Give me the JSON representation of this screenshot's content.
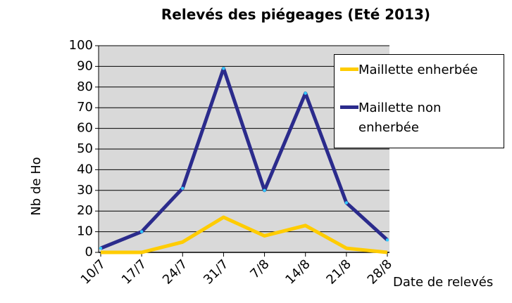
{
  "chart_data": {
    "type": "line",
    "title": "Relevés des piégeages (Eté 2013)",
    "y_label": "Nb de Ho",
    "x_label": "Date de relevés",
    "categories": [
      "10/7",
      "17/7",
      "24/7",
      "31/7",
      "7/8",
      "14/8",
      "21/8",
      "28/8"
    ],
    "series": [
      {
        "name": "Maillette enherbée",
        "color": "#ffcc00",
        "values": [
          0,
          0,
          5,
          17,
          8,
          13,
          2,
          0
        ]
      },
      {
        "name": "Maillette non enherbée",
        "color": "#2b2b8c",
        "values": [
          2,
          10,
          31,
          89,
          30,
          77,
          24,
          6
        ]
      }
    ],
    "ylim": [
      0,
      100
    ],
    "yticks": [
      0,
      10,
      20,
      30,
      40,
      50,
      60,
      70,
      80,
      90,
      100
    ],
    "grid": true
  }
}
